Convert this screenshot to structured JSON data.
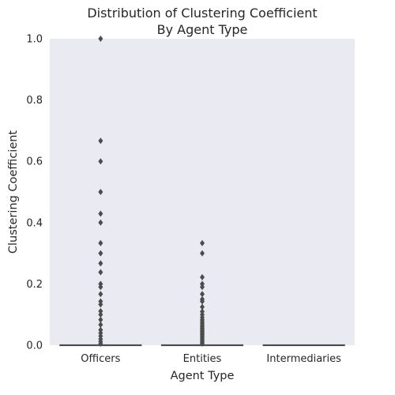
{
  "chart_data": {
    "type": "box",
    "title": [
      "Distribution of Clustering Coefficient",
      "By Agent Type"
    ],
    "xlabel": "Agent Type",
    "ylabel": "Clustering Coefficient",
    "categories": [
      "Officers",
      "Entities",
      "Intermediaries"
    ],
    "ylim": [
      0,
      1.0
    ],
    "yticks": [
      "0.0",
      "0.2",
      "0.4",
      "0.6",
      "0.8",
      "1.0"
    ],
    "grid": false,
    "background": "#EAEAF2",
    "box_color": "#4C4C4C",
    "boxes": [
      {
        "category": "Officers",
        "q1": 0,
        "median": 0,
        "q3": 0,
        "whisker_low": 0,
        "whisker_high": 0,
        "outliers": [
          1.0,
          0.667,
          0.6,
          0.5,
          0.429,
          0.4,
          0.333,
          0.3,
          0.267,
          0.238,
          0.2,
          0.19,
          0.167,
          0.143,
          0.133,
          0.111,
          0.1,
          0.083,
          0.067,
          0.05,
          0.04,
          0.03,
          0.02,
          0.012,
          0.005
        ]
      },
      {
        "category": "Entities",
        "q1": 0,
        "median": 0,
        "q3": 0,
        "whisker_low": 0,
        "whisker_high": 0,
        "outliers": [
          0.333,
          0.3,
          0.222,
          0.2,
          0.19,
          0.167,
          0.15,
          0.143,
          0.125,
          0.11,
          0.1,
          0.091,
          0.083,
          0.077,
          0.071,
          0.065,
          0.06,
          0.055,
          0.05,
          0.045,
          0.04,
          0.035,
          0.03,
          0.025,
          0.02,
          0.015,
          0.01,
          0.005
        ]
      },
      {
        "category": "Intermediaries",
        "q1": 0,
        "median": 0,
        "q3": 0,
        "whisker_low": 0,
        "whisker_high": 0,
        "outliers": []
      }
    ]
  }
}
